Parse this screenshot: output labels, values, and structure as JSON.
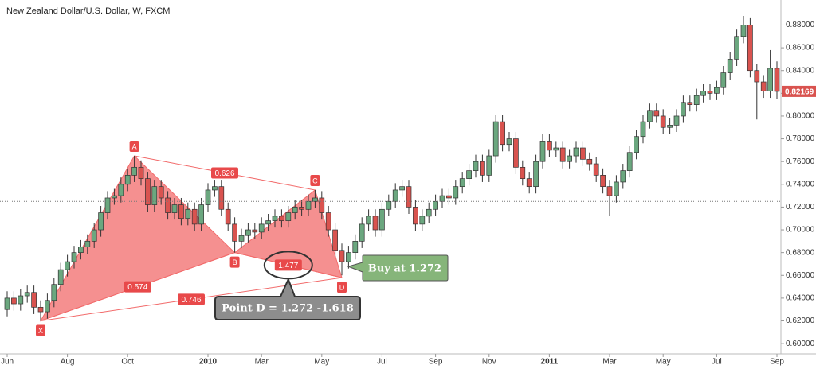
{
  "chart_data": {
    "type": "candlestick",
    "title": "New Zealand Dollar/U.S. Dollar, W, FXCM",
    "categories": [
      "Jun",
      null,
      null,
      null,
      null,
      null,
      null,
      null,
      null,
      "Aug",
      null,
      null,
      null,
      null,
      null,
      null,
      null,
      null,
      "Oct",
      null,
      null,
      null,
      null,
      null,
      null,
      null,
      null,
      null,
      null,
      null,
      "2010",
      null,
      null,
      null,
      null,
      null,
      null,
      null,
      "Mar",
      null,
      null,
      null,
      null,
      null,
      null,
      null,
      null,
      "May",
      null,
      null,
      null,
      null,
      null,
      null,
      null,
      null,
      "Jul",
      null,
      null,
      null,
      null,
      null,
      null,
      null,
      "Sep",
      null,
      null,
      null,
      null,
      null,
      null,
      null,
      "Nov",
      null,
      null,
      null,
      null,
      null,
      null,
      null,
      null,
      "2011",
      null,
      null,
      null,
      null,
      null,
      null,
      null,
      null,
      "Mar",
      null,
      null,
      null,
      null,
      null,
      null,
      null,
      "May",
      null,
      null,
      null,
      null,
      null,
      null,
      null,
      "Jul",
      null,
      null,
      null,
      null,
      null,
      null,
      null,
      null,
      "Sep"
    ],
    "open": [
      0.63,
      0.64,
      0.635,
      0.642,
      0.645,
      0.632,
      0.628,
      0.638,
      0.652,
      0.665,
      0.672,
      0.68,
      0.685,
      0.69,
      0.7,
      0.715,
      0.728,
      0.73,
      0.74,
      0.748,
      0.755,
      0.745,
      0.722,
      0.738,
      0.728,
      0.715,
      0.722,
      0.71,
      0.718,
      0.705,
      0.722,
      0.735,
      0.738,
      0.718,
      0.705,
      0.69,
      0.695,
      0.7,
      0.698,
      0.705,
      0.708,
      0.712,
      0.708,
      0.715,
      0.72,
      0.718,
      0.725,
      0.728,
      0.715,
      0.7,
      0.682,
      0.672,
      0.68,
      0.69,
      0.705,
      0.712,
      0.7,
      0.718,
      0.725,
      0.735,
      0.738,
      0.72,
      0.705,
      0.712,
      0.718,
      0.725,
      0.73,
      0.728,
      0.738,
      0.745,
      0.752,
      0.76,
      0.748,
      0.765,
      0.795,
      0.775,
      0.78,
      0.755,
      0.745,
      0.738,
      0.76,
      0.778,
      0.77,
      0.772,
      0.76,
      0.765,
      0.772,
      0.762,
      0.758,
      0.748,
      0.738,
      0.73,
      0.742,
      0.752,
      0.768,
      0.782,
      0.795,
      0.805,
      0.8,
      0.79,
      0.792,
      0.8,
      0.812,
      0.81,
      0.818,
      0.822,
      0.82,
      0.825,
      0.838,
      0.85,
      0.87,
      0.88,
      0.84,
      0.83,
      0.822,
      0.842
    ],
    "high": [
      0.646,
      0.646,
      0.648,
      0.651,
      0.651,
      0.638,
      0.644,
      0.658,
      0.671,
      0.678,
      0.686,
      0.691,
      0.696,
      0.706,
      0.721,
      0.734,
      0.736,
      0.746,
      0.754,
      0.765,
      0.761,
      0.751,
      0.744,
      0.744,
      0.734,
      0.728,
      0.728,
      0.724,
      0.724,
      0.728,
      0.741,
      0.744,
      0.744,
      0.724,
      0.711,
      0.701,
      0.706,
      0.706,
      0.711,
      0.714,
      0.718,
      0.718,
      0.721,
      0.726,
      0.726,
      0.731,
      0.735,
      0.734,
      0.721,
      0.706,
      0.688,
      0.686,
      0.696,
      0.711,
      0.718,
      0.718,
      0.724,
      0.731,
      0.741,
      0.744,
      0.744,
      0.726,
      0.718,
      0.724,
      0.731,
      0.736,
      0.736,
      0.744,
      0.751,
      0.758,
      0.766,
      0.766,
      0.771,
      0.801,
      0.801,
      0.786,
      0.786,
      0.761,
      0.751,
      0.766,
      0.784,
      0.784,
      0.778,
      0.778,
      0.771,
      0.778,
      0.778,
      0.768,
      0.764,
      0.754,
      0.744,
      0.748,
      0.758,
      0.774,
      0.788,
      0.801,
      0.811,
      0.811,
      0.806,
      0.798,
      0.806,
      0.818,
      0.818,
      0.824,
      0.828,
      0.828,
      0.831,
      0.844,
      0.856,
      0.876,
      0.888,
      0.886,
      0.846,
      0.836,
      0.858,
      0.848
    ],
    "low": [
      0.624,
      0.629,
      0.629,
      0.636,
      0.626,
      0.62,
      0.622,
      0.632,
      0.646,
      0.659,
      0.666,
      0.674,
      0.679,
      0.684,
      0.694,
      0.709,
      0.722,
      0.724,
      0.734,
      0.742,
      0.739,
      0.716,
      0.716,
      0.722,
      0.709,
      0.709,
      0.704,
      0.704,
      0.699,
      0.699,
      0.716,
      0.729,
      0.712,
      0.699,
      0.68,
      0.684,
      0.689,
      0.692,
      0.692,
      0.699,
      0.702,
      0.702,
      0.702,
      0.709,
      0.712,
      0.712,
      0.719,
      0.709,
      0.694,
      0.676,
      0.66,
      0.666,
      0.674,
      0.684,
      0.699,
      0.694,
      0.694,
      0.712,
      0.719,
      0.729,
      0.714,
      0.699,
      0.699,
      0.706,
      0.712,
      0.719,
      0.722,
      0.722,
      0.732,
      0.739,
      0.746,
      0.742,
      0.742,
      0.759,
      0.769,
      0.769,
      0.749,
      0.739,
      0.732,
      0.732,
      0.754,
      0.764,
      0.764,
      0.754,
      0.754,
      0.759,
      0.756,
      0.752,
      0.742,
      0.732,
      0.712,
      0.724,
      0.736,
      0.746,
      0.762,
      0.776,
      0.789,
      0.794,
      0.784,
      0.784,
      0.786,
      0.794,
      0.804,
      0.804,
      0.812,
      0.814,
      0.814,
      0.819,
      0.832,
      0.844,
      0.864,
      0.834,
      0.797,
      0.816,
      0.816,
      0.815
    ],
    "close": [
      0.64,
      0.635,
      0.642,
      0.645,
      0.632,
      0.628,
      0.638,
      0.652,
      0.665,
      0.672,
      0.68,
      0.685,
      0.69,
      0.7,
      0.715,
      0.728,
      0.73,
      0.74,
      0.748,
      0.755,
      0.745,
      0.722,
      0.738,
      0.728,
      0.715,
      0.722,
      0.71,
      0.718,
      0.705,
      0.722,
      0.735,
      0.738,
      0.718,
      0.705,
      0.69,
      0.695,
      0.7,
      0.698,
      0.705,
      0.708,
      0.712,
      0.708,
      0.715,
      0.72,
      0.718,
      0.725,
      0.728,
      0.715,
      0.7,
      0.682,
      0.672,
      0.68,
      0.69,
      0.705,
      0.712,
      0.7,
      0.718,
      0.725,
      0.735,
      0.738,
      0.72,
      0.705,
      0.712,
      0.718,
      0.725,
      0.73,
      0.728,
      0.738,
      0.745,
      0.752,
      0.76,
      0.748,
      0.765,
      0.795,
      0.775,
      0.78,
      0.755,
      0.745,
      0.738,
      0.76,
      0.778,
      0.77,
      0.772,
      0.76,
      0.765,
      0.772,
      0.762,
      0.758,
      0.748,
      0.738,
      0.73,
      0.742,
      0.752,
      0.768,
      0.782,
      0.795,
      0.805,
      0.8,
      0.79,
      0.792,
      0.8,
      0.812,
      0.81,
      0.818,
      0.822,
      0.82,
      0.825,
      0.838,
      0.85,
      0.87,
      0.88,
      0.84,
      0.83,
      0.822,
      0.842,
      0.82169
    ],
    "up_color": "#6ba77f",
    "down_color": "#d9534f",
    "ylim": [
      0.591,
      0.902
    ],
    "yticks": [
      {
        "value": 0.6,
        "label": "0.60000"
      },
      {
        "value": 0.62,
        "label": "0.62000"
      },
      {
        "value": 0.64,
        "label": "0.64000"
      },
      {
        "value": 0.66,
        "label": "0.66000"
      },
      {
        "value": 0.68,
        "label": "0.68000"
      },
      {
        "value": 0.7,
        "label": "0.70000"
      },
      {
        "value": 0.72,
        "label": "0.72000"
      },
      {
        "value": 0.74,
        "label": "0.74000"
      },
      {
        "value": 0.76,
        "label": "0.76000"
      },
      {
        "value": 0.78,
        "label": "0.78000"
      },
      {
        "value": 0.8,
        "label": "0.80000"
      },
      {
        "value": 0.82,
        "label": "0.82000"
      },
      {
        "value": 0.84,
        "label": "0.84000"
      },
      {
        "value": 0.86,
        "label": "0.86000"
      },
      {
        "value": 0.88,
        "label": "0.88000"
      }
    ],
    "grid": false,
    "reference_line": 0.725,
    "pattern": {
      "color": "#f26b6b",
      "points": [
        {
          "label": "X",
          "index": 5,
          "value": 0.62
        },
        {
          "label": "A",
          "index": 19,
          "value": 0.765
        },
        {
          "label": "B",
          "index": 34,
          "value": 0.68
        },
        {
          "label": "C",
          "index": 46,
          "value": 0.735
        },
        {
          "label": "D",
          "index": 50,
          "value": 0.658
        }
      ],
      "ratios": [
        0.626,
        1.477,
        0.574,
        0.746
      ]
    },
    "annotations": [
      "Buy at 1.272",
      "Point D = 1.272 -1.618"
    ]
  }
}
